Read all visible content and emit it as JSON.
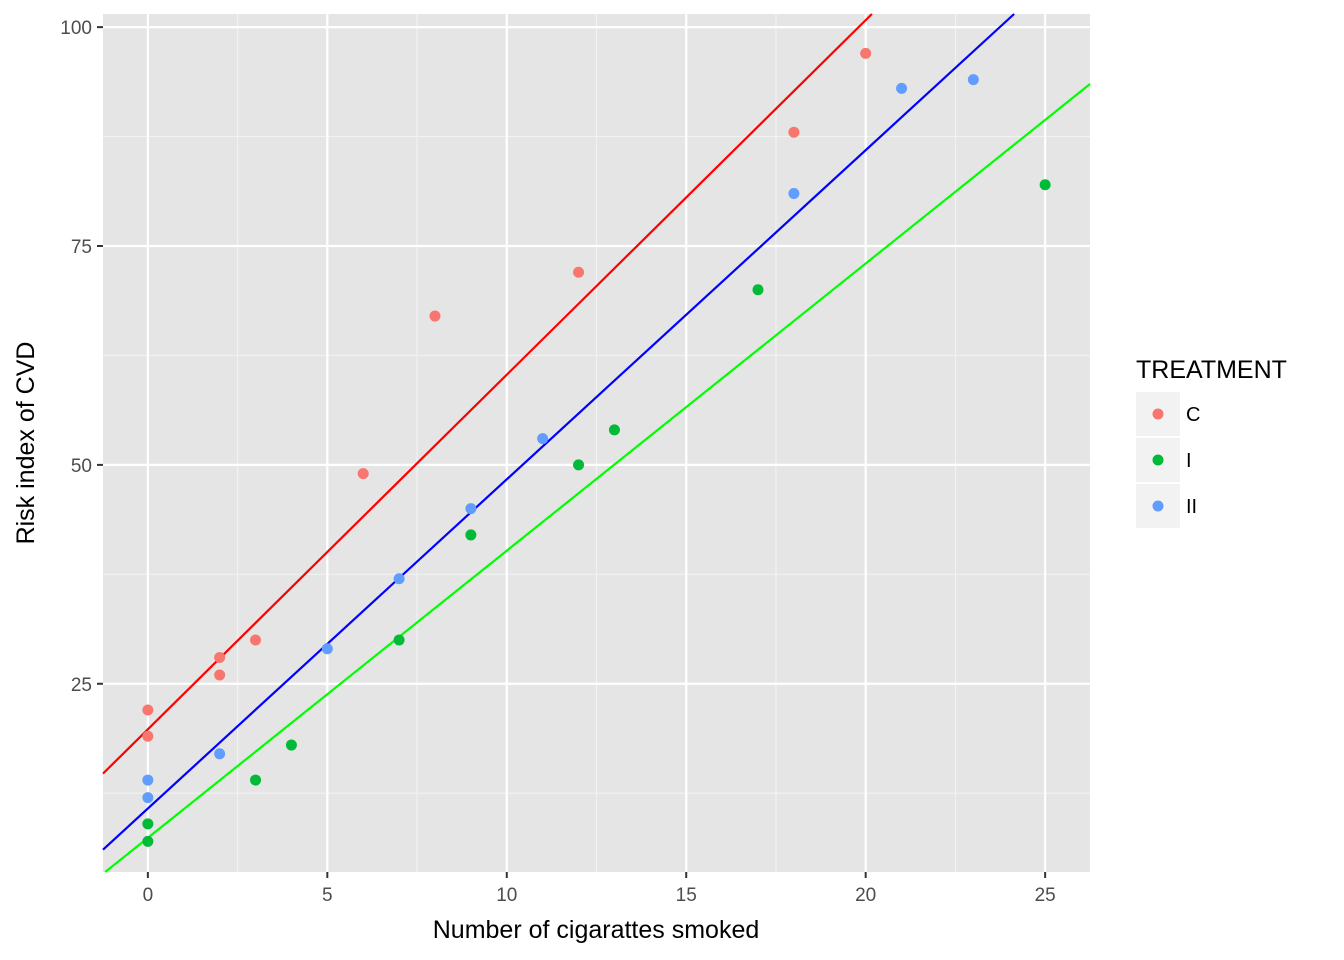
{
  "chart_data": {
    "type": "scatter",
    "xlabel": "Number of cigarattes smoked",
    "ylabel": "Risk index of CVD",
    "xlim": [
      -1.25,
      26.25
    ],
    "ylim": [
      3.5,
      101.5
    ],
    "x_ticks": [
      0,
      5,
      10,
      15,
      20,
      25
    ],
    "x_tick_labels": [
      "0",
      "5",
      "10",
      "15",
      "20",
      "25"
    ],
    "y_ticks": [
      25,
      50,
      75,
      100
    ],
    "y_tick_labels": [
      "25",
      "50",
      "75",
      "100"
    ],
    "grid": true,
    "background": "#e5e5e5",
    "legend": {
      "title": "TREATMENT",
      "placement": "right",
      "entries": [
        "C",
        "I",
        "II"
      ]
    },
    "series": [
      {
        "name": "C",
        "color": "#f8766d",
        "points": [
          [
            0,
            22
          ],
          [
            0,
            19
          ],
          [
            2,
            28
          ],
          [
            2,
            26
          ],
          [
            3,
            30
          ],
          [
            6,
            49
          ],
          [
            8,
            67
          ],
          [
            12,
            72
          ],
          [
            18,
            88
          ],
          [
            20,
            97
          ]
        ]
      },
      {
        "name": "I",
        "color": "#00ba38",
        "points": [
          [
            0,
            9
          ],
          [
            0,
            7
          ],
          [
            3,
            14
          ],
          [
            4,
            18
          ],
          [
            7,
            30
          ],
          [
            9,
            42
          ],
          [
            12,
            50
          ],
          [
            13,
            54
          ],
          [
            17,
            70
          ],
          [
            25,
            82
          ]
        ]
      },
      {
        "name": "II",
        "color": "#619cff",
        "points": [
          [
            0,
            14
          ],
          [
            0,
            12
          ],
          [
            2,
            17
          ],
          [
            5,
            29
          ],
          [
            7,
            37
          ],
          [
            9,
            45
          ],
          [
            11,
            53
          ],
          [
            18,
            81
          ],
          [
            21,
            93
          ],
          [
            23,
            94
          ]
        ]
      }
    ],
    "fit_lines": [
      {
        "series": "C",
        "color": "#ff0000",
        "intercept": 19.8,
        "slope": 4.05
      },
      {
        "series": "II",
        "color": "#0000ff",
        "intercept": 10.75,
        "slope": 3.76
      },
      {
        "series": "I",
        "color": "#00ff00",
        "intercept": 7.4,
        "slope": 3.28
      }
    ]
  }
}
